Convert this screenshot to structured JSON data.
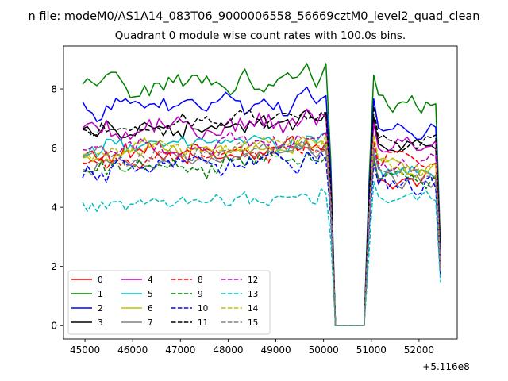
{
  "figure": {
    "suptitle": "n file: modeM0/AS1A14_083T06_9000006558_56669cztM0_level2_quad_clean"
  },
  "chart_data": {
    "type": "line",
    "title": "Quadrant 0 module wise count rates with 100.0s bins.",
    "xlabel": "",
    "ylabel": "",
    "x_offset_label": "+5.116e8",
    "x_offset": 511600000,
    "xlim": [
      44550,
      52800
    ],
    "ylim": [
      -0.45,
      9.45
    ],
    "xticks": [
      45000,
      46000,
      47000,
      48000,
      49000,
      50000,
      51000,
      52000
    ],
    "yticks": [
      0,
      2,
      4,
      6,
      8
    ],
    "x_range": [
      44950,
      52450
    ],
    "x_step": 100,
    "gap": {
      "drop_start": 50100,
      "zero_start": 50250,
      "zero_end": 50850,
      "rise_end": 51000,
      "end_drop": 52450
    },
    "grid": false,
    "legend_placement": "lower-left",
    "series": [
      {
        "name": "0",
        "color": "#ff0000",
        "dash": "solid",
        "level": 5.7,
        "end": 4.8,
        "noise": 0.35
      },
      {
        "name": "1",
        "color": "#008000",
        "dash": "solid",
        "level": 8.0,
        "end": 7.6,
        "noise": 0.4
      },
      {
        "name": "2",
        "color": "#0000ff",
        "dash": "solid",
        "level": 7.3,
        "end": 6.8,
        "noise": 0.35
      },
      {
        "name": "3",
        "color": "#000000",
        "dash": "solid",
        "level": 6.6,
        "end": 6.2,
        "noise": 0.3
      },
      {
        "name": "4",
        "color": "#bf00bf",
        "dash": "solid",
        "level": 6.5,
        "end": 6.0,
        "noise": 0.35
      },
      {
        "name": "5",
        "color": "#00bfbf",
        "dash": "solid",
        "level": 5.9,
        "end": 5.3,
        "noise": 0.3
      },
      {
        "name": "6",
        "color": "#bfbf00",
        "dash": "solid",
        "level": 5.7,
        "end": 5.4,
        "noise": 0.3
      },
      {
        "name": "7",
        "color": "#808080",
        "dash": "solid",
        "level": 5.5,
        "end": 5.0,
        "noise": 0.3
      },
      {
        "name": "8",
        "color": "#ff0000",
        "dash": "dashed",
        "level": 5.6,
        "end": 5.6,
        "noise": 0.3
      },
      {
        "name": "9",
        "color": "#008000",
        "dash": "dashed",
        "level": 5.2,
        "end": 5.0,
        "noise": 0.3
      },
      {
        "name": "10",
        "color": "#0000ff",
        "dash": "dashed",
        "level": 5.2,
        "end": 4.7,
        "noise": 0.35
      },
      {
        "name": "11",
        "color": "#000000",
        "dash": "dashed",
        "level": 6.7,
        "end": 6.3,
        "noise": 0.3
      },
      {
        "name": "12",
        "color": "#bf00bf",
        "dash": "dashed",
        "level": 5.9,
        "end": 5.5,
        "noise": 0.3
      },
      {
        "name": "13",
        "color": "#00bfbf",
        "dash": "dashed",
        "level": 4.0,
        "end": 4.2,
        "noise": 0.3
      },
      {
        "name": "14",
        "color": "#bfbf00",
        "dash": "dashed",
        "level": 5.8,
        "end": 5.4,
        "noise": 0.3
      },
      {
        "name": "15",
        "color": "#808080",
        "dash": "dashed",
        "level": 5.6,
        "end": 5.2,
        "noise": 0.3
      }
    ]
  }
}
